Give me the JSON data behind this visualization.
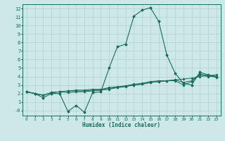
{
  "xlabel": "Humidex (Indice chaleur)",
  "xlim": [
    -0.5,
    23.5
  ],
  "ylim": [
    -0.6,
    12.5
  ],
  "xticks": [
    0,
    1,
    2,
    3,
    4,
    5,
    6,
    7,
    8,
    9,
    10,
    11,
    12,
    13,
    14,
    15,
    16,
    17,
    18,
    19,
    20,
    21,
    22,
    23
  ],
  "yticks": [
    0,
    1,
    2,
    3,
    4,
    5,
    6,
    7,
    8,
    9,
    10,
    11,
    12
  ],
  "ytick_labels": [
    "-0",
    "1",
    "2",
    "3",
    "4",
    "5",
    "6",
    "7",
    "8",
    "9",
    "10",
    "11",
    "12"
  ],
  "bg_color": "#cce8e8",
  "line_color": "#1a6b5a",
  "grid_color": "#b0d0d0",
  "curves": [
    [
      2.2,
      2.0,
      1.5,
      2.0,
      2.0,
      -0.1,
      0.6,
      -0.2,
      2.1,
      2.2,
      5.0,
      7.5,
      7.8,
      11.1,
      11.8,
      12.1,
      10.5,
      6.5,
      4.4,
      3.2,
      3.0,
      4.5,
      4.2,
      4.0
    ],
    [
      2.2,
      2.0,
      1.8,
      2.1,
      2.2,
      2.1,
      2.2,
      2.2,
      2.3,
      2.4,
      2.5,
      2.7,
      2.8,
      3.0,
      3.1,
      3.3,
      3.4,
      3.5,
      3.6,
      3.7,
      3.8,
      4.0,
      4.1,
      4.2
    ],
    [
      2.2,
      2.0,
      1.8,
      2.1,
      2.2,
      2.3,
      2.4,
      2.4,
      2.5,
      2.5,
      2.7,
      2.8,
      2.9,
      3.1,
      3.2,
      3.4,
      3.5,
      3.5,
      3.6,
      3.3,
      3.5,
      4.3,
      4.1,
      3.9
    ],
    [
      2.2,
      2.0,
      1.8,
      2.1,
      2.2,
      2.3,
      2.3,
      2.3,
      2.4,
      2.4,
      2.6,
      2.7,
      2.9,
      3.0,
      3.1,
      3.3,
      3.4,
      3.5,
      3.5,
      3.0,
      3.4,
      4.2,
      4.0,
      4.0
    ]
  ],
  "figsize": [
    3.2,
    2.0
  ],
  "dpi": 100
}
